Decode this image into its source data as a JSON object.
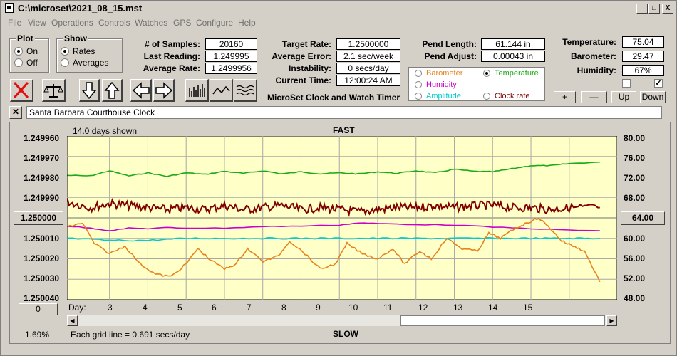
{
  "window": {
    "title": "C:\\microset\\2021_08_15.mst",
    "min_label": "_",
    "max_label": "□",
    "close_label": "X"
  },
  "menu": [
    "File",
    "View",
    "Operations",
    "Controls",
    "Watches",
    "GPS",
    "Configure",
    "Help"
  ],
  "plot_group": {
    "title": "Plot",
    "on_label": "On",
    "off_label": "Off",
    "selected": "On"
  },
  "show_group": {
    "title": "Show",
    "rates_label": "Rates",
    "averages_label": "Averages",
    "selected": "Rates"
  },
  "stats": {
    "samples_label": "# of Samples:",
    "samples": "20160",
    "last_reading_label": "Last Reading:",
    "last_reading": "1.249995",
    "average_rate_label": "Average Rate:",
    "average_rate": "1.2499956",
    "target_rate_label": "Target Rate:",
    "target_rate": "1.2500000",
    "average_error_label": "Average Error:",
    "average_error": "2.1 sec/week",
    "instability_label": "Instability:",
    "instability": "0 secs/day",
    "current_time_label": "Current Time:",
    "current_time": "12:00:24 AM",
    "pend_length_label": "Pend Length:",
    "pend_length": "61.144 in",
    "pend_adjust_label": "Pend Adjust:",
    "pend_adjust": "0.00043 in",
    "temperature_label": "Temperature:",
    "temperature": "75.04",
    "barometer_label": "Barometer:",
    "barometer": "29.47",
    "humidity_label": "Humidity:",
    "humidity": "67%"
  },
  "app_caption": "MicroSet Clock and Watch Timer",
  "plot_selector": {
    "barometer": "Barometer",
    "temperature": "Temperature",
    "humidity": "Humidity",
    "amplitude": "Amplitude",
    "clock_rate": "Clock rate",
    "selected": "Temperature",
    "colors": {
      "barometer": "#e8821e",
      "temperature": "#1aaa1a",
      "humidity": "#cc00cc",
      "amplitude": "#00cccc",
      "clock_rate": "#800000"
    }
  },
  "adjust_buttons": {
    "plus": "+",
    "minus": "—",
    "up": "Up",
    "down": "Down"
  },
  "checkboxes": [
    {
      "checked": false
    },
    {
      "checked": true,
      "mark": "✓"
    }
  ],
  "watch_name": "Santa Barbara Courthouse Clock",
  "close_x": "✕",
  "chart": {
    "days_shown": "14.0 days shown",
    "top_label": "FAST",
    "bottom_label": "SLOW",
    "left_ticks": [
      "1.249960",
      "1.249970",
      "1.249980",
      "1.249990",
      "1.250000",
      "1.250010",
      "1.250020",
      "1.250030",
      "1.250040"
    ],
    "right_ticks": [
      "80.00",
      "76.00",
      "72.00",
      "68.00",
      "64.00",
      "60.00",
      "56.00",
      "52.00",
      "48.00"
    ],
    "day_label": "Day:",
    "days": [
      "3",
      "4",
      "5",
      "6",
      "7",
      "8",
      "9",
      "10",
      "11",
      "12",
      "13",
      "14",
      "15"
    ],
    "left_offset_button": "0",
    "grid_note": "Each grid line = 0.691 secs/day",
    "percent": "1.69%"
  },
  "chart_data": {
    "type": "line",
    "x_label": "Day:",
    "x_ticks": [
      3,
      4,
      5,
      6,
      7,
      8,
      9,
      10,
      11,
      12,
      13,
      14,
      15
    ],
    "y_left_range": [
      1.24996,
      1.25004
    ],
    "y_right_range": [
      48.0,
      80.0
    ],
    "grid": true,
    "series": [
      {
        "name": "Temperature",
        "color": "#1aaa1a",
        "axis": "right",
        "x": [
          1.9,
          2.5,
          3.0,
          3.5,
          4.0,
          4.5,
          5.0,
          5.5,
          6.0,
          6.5,
          7.0,
          7.5,
          8.0,
          8.5,
          9.0,
          9.5,
          10.0,
          10.5,
          11.0,
          11.5,
          12.0,
          12.5,
          13.0,
          13.5,
          14.0,
          14.5,
          15.0,
          15.8
        ],
        "y": [
          72.3,
          72.2,
          73.2,
          72.2,
          72.8,
          72.1,
          72.8,
          72.5,
          73.1,
          72.7,
          73.2,
          72.6,
          73.0,
          72.6,
          72.8,
          72.6,
          73.0,
          72.7,
          73.2,
          72.8,
          73.5,
          73.1,
          73.0,
          73.6,
          74.2,
          74.2,
          74.6,
          74.9
        ]
      },
      {
        "name": "Clock rate",
        "color": "#800000",
        "axis": "left",
        "x": [
          1.9,
          2.5,
          3.0,
          3.5,
          4.0,
          4.5,
          5.0,
          5.5,
          6.0,
          6.5,
          7.0,
          7.5,
          8.0,
          8.5,
          9.0,
          9.5,
          10.0,
          10.5,
          11.0,
          11.5,
          12.0,
          12.5,
          13.0,
          13.5,
          14.0,
          14.5,
          15.0,
          15.8
        ],
        "y": [
          1.249992,
          1.249995,
          1.249993,
          1.249994,
          1.249995,
          1.249996,
          1.249995,
          1.249996,
          1.249994,
          1.249996,
          1.249995,
          1.249994,
          1.249996,
          1.249995,
          1.249996,
          1.249997,
          1.249996,
          1.249995,
          1.249995,
          1.249994,
          1.249995,
          1.249994,
          1.249994,
          1.249995,
          1.249995,
          1.249996,
          1.249995,
          1.249995
        ]
      },
      {
        "name": "Amplitude",
        "color": "#00cccc",
        "axis": "left",
        "x": [
          1.9,
          3.0,
          4.0,
          5.0,
          6.0,
          7.0,
          8.0,
          9.0,
          10.0,
          11.0,
          12.0,
          13.0,
          14.0,
          15.0,
          15.8
        ],
        "y": [
          1.25001,
          1.250011,
          1.250011,
          1.25001,
          1.25001,
          1.25001,
          1.25001,
          1.25001,
          1.25001,
          1.25001,
          1.25001,
          1.25001,
          1.25001,
          1.25001,
          1.25001
        ]
      },
      {
        "name": "Humidity",
        "color": "#cc00cc",
        "axis": "right",
        "x": [
          1.9,
          2.5,
          3.0,
          3.5,
          4.0,
          4.5,
          5.0,
          6.0,
          7.0,
          8.0,
          9.0,
          9.5,
          10.0,
          11.0,
          12.0,
          13.0,
          14.0,
          15.0,
          15.8
        ],
        "y": [
          62.4,
          62.0,
          61.5,
          62.0,
          61.9,
          62.1,
          62.0,
          62.0,
          62.3,
          62.4,
          62.6,
          63.0,
          62.9,
          62.7,
          62.6,
          62.2,
          61.9,
          61.6,
          61.5
        ]
      },
      {
        "name": "Barometer",
        "color": "#e8821e",
        "axis": "right",
        "x": [
          1.9,
          2.3,
          2.6,
          3.0,
          3.4,
          3.8,
          4.2,
          4.6,
          5.0,
          5.3,
          5.6,
          6.0,
          6.3,
          6.6,
          7.0,
          7.4,
          7.7,
          8.1,
          8.5,
          8.9,
          9.2,
          9.6,
          10.0,
          10.4,
          10.7,
          11.1,
          11.4,
          11.8,
          12.2,
          12.6,
          12.9,
          13.2,
          13.6,
          13.9,
          14.2,
          14.5,
          14.8,
          15.1,
          15.4,
          15.8
        ],
        "y": [
          62.2,
          63.0,
          59.0,
          57.0,
          58.5,
          55.0,
          53.0,
          52.5,
          55.0,
          58.0,
          56.0,
          54.0,
          55.0,
          58.0,
          55.5,
          56.5,
          59.5,
          57.0,
          54.0,
          55.0,
          59.0,
          57.0,
          56.0,
          58.0,
          55.0,
          57.5,
          56.0,
          60.0,
          58.0,
          57.5,
          61.0,
          60.0,
          62.0,
          63.0,
          64.0,
          62.0,
          59.5,
          58.5,
          57.5,
          51.5
        ]
      }
    ]
  }
}
